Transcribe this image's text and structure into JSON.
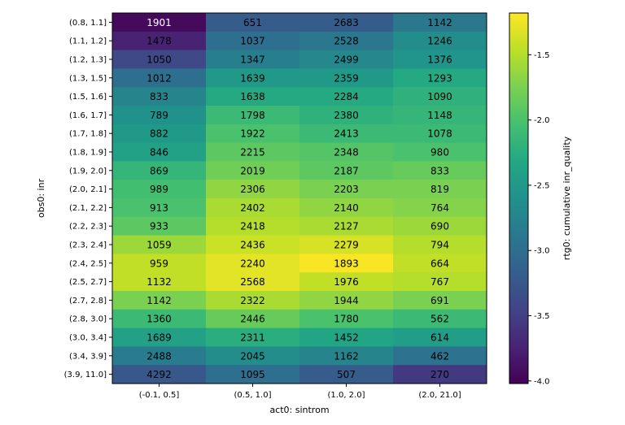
{
  "chart_data": {
    "type": "heatmap",
    "xlabel": "act0: sintrom",
    "ylabel": "obs0: inr",
    "colorbar_label": "rtg0: cumulative inr_quality",
    "colorbar_ticks": [
      "-4.0",
      "-3.5",
      "-3.0",
      "-2.5",
      "-2.0",
      "-1.5"
    ],
    "colorbar_tick_values": [
      -4.0,
      -3.5,
      -3.0,
      -2.5,
      -2.0,
      -1.5
    ],
    "colorbar_range": [
      -4.02,
      -1.18
    ],
    "colormap": "viridis",
    "x_categories": [
      "(-0.1, 0.5]",
      "(0.5, 1.0]",
      "(1.0, 2.0]",
      "(2.0, 21.0]"
    ],
    "y_categories": [
      "(0.8, 1.1]",
      "(1.1, 1.2]",
      "(1.2, 1.3]",
      "(1.3, 1.5]",
      "(1.5, 1.6]",
      "(1.6, 1.7]",
      "(1.7, 1.8]",
      "(1.8, 1.9]",
      "(1.9, 2.0]",
      "(2.0, 2.1]",
      "(2.1, 2.2]",
      "(2.2, 2.3]",
      "(2.3, 2.4]",
      "(2.4, 2.5]",
      "(2.5, 2.7]",
      "(2.7, 2.8]",
      "(2.8, 3.0]",
      "(3.0, 3.4]",
      "(3.4, 3.9]",
      "(3.9, 11.0]"
    ],
    "counts": [
      [
        1901,
        651,
        2683,
        1142
      ],
      [
        1478,
        1037,
        2528,
        1246
      ],
      [
        1050,
        1347,
        2499,
        1376
      ],
      [
        1012,
        1639,
        2359,
        1293
      ],
      [
        833,
        1638,
        2284,
        1090
      ],
      [
        789,
        1798,
        2380,
        1148
      ],
      [
        882,
        1922,
        2413,
        1078
      ],
      [
        846,
        2215,
        2348,
        980
      ],
      [
        869,
        2019,
        2187,
        833
      ],
      [
        989,
        2306,
        2203,
        819
      ],
      [
        913,
        2402,
        2140,
        764
      ],
      [
        933,
        2418,
        2127,
        690
      ],
      [
        1059,
        2436,
        2279,
        794
      ],
      [
        959,
        2240,
        1893,
        664
      ],
      [
        1132,
        2568,
        1976,
        767
      ],
      [
        1142,
        2322,
        1944,
        691
      ],
      [
        1360,
        2446,
        1780,
        562
      ],
      [
        1689,
        2311,
        1452,
        614
      ],
      [
        2488,
        2045,
        1162,
        462
      ],
      [
        4292,
        1095,
        507,
        270
      ]
    ],
    "values": [
      [
        -3.95,
        -3.2,
        -3.2,
        -2.9
      ],
      [
        -3.75,
        -3.0,
        -2.9,
        -2.65
      ],
      [
        -3.4,
        -2.8,
        -2.7,
        -2.55
      ],
      [
        -3.0,
        -2.5,
        -2.5,
        -2.3
      ],
      [
        -2.75,
        -2.3,
        -2.3,
        -2.2
      ],
      [
        -2.6,
        -2.1,
        -2.2,
        -2.15
      ],
      [
        -2.5,
        -2.0,
        -2.1,
        -2.1
      ],
      [
        -2.4,
        -1.9,
        -1.95,
        -2.0
      ],
      [
        -2.15,
        -1.8,
        -1.9,
        -1.85
      ],
      [
        -2.05,
        -1.65,
        -1.75,
        -1.75
      ],
      [
        -2.0,
        -1.55,
        -1.65,
        -1.7
      ],
      [
        -1.9,
        -1.5,
        -1.55,
        -1.6
      ],
      [
        -1.6,
        -1.4,
        -1.35,
        -1.5
      ],
      [
        -1.45,
        -1.3,
        -1.2,
        -1.45
      ],
      [
        -1.45,
        -1.3,
        -1.45,
        -1.5
      ],
      [
        -1.75,
        -1.55,
        -1.65,
        -1.75
      ],
      [
        -2.1,
        -1.85,
        -2.0,
        -2.1
      ],
      [
        -2.4,
        -2.25,
        -2.35,
        -2.45
      ],
      [
        -2.85,
        -2.65,
        -2.75,
        -2.95
      ],
      [
        -3.25,
        -3.0,
        -3.2,
        -3.55
      ]
    ]
  }
}
